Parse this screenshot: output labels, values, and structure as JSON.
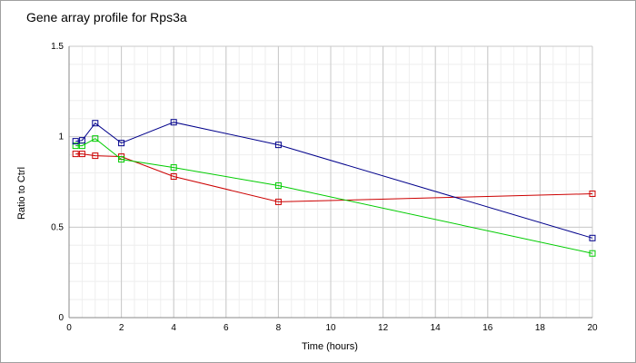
{
  "chart_data": {
    "type": "line",
    "title": "Gene array profile for Rps3a",
    "xlabel": "Time (hours)",
    "ylabel": "Ratio to Ctrl",
    "xlim": [
      0,
      20
    ],
    "ylim": [
      0,
      1.5
    ],
    "xticks": [
      0,
      2,
      4,
      6,
      8,
      10,
      12,
      14,
      16,
      18,
      20
    ],
    "yticks": [
      {
        "value": 0,
        "label": "0"
      },
      {
        "value": 0.5,
        "label": "0.5"
      },
      {
        "value": 1,
        "label": "1"
      },
      {
        "value": 1.5,
        "label": "1.5"
      }
    ],
    "grid": true,
    "legend": "none",
    "series": [
      {
        "color": "#00008b",
        "x": [
          0.25,
          0.5,
          1,
          2,
          4,
          8,
          20
        ],
        "y": [
          0.975,
          0.98,
          1.075,
          0.965,
          1.08,
          0.955,
          0.44
        ]
      },
      {
        "color": "#00cc00",
        "x": [
          0.25,
          0.5,
          1,
          2,
          4,
          8,
          20
        ],
        "y": [
          0.95,
          0.95,
          0.99,
          0.875,
          0.83,
          0.73,
          0.355
        ]
      },
      {
        "color": "#cc0000",
        "x": [
          0.25,
          0.5,
          1,
          2,
          4,
          8,
          20
        ],
        "y": [
          0.905,
          0.905,
          0.895,
          0.89,
          0.78,
          0.64,
          0.685
        ]
      }
    ]
  }
}
